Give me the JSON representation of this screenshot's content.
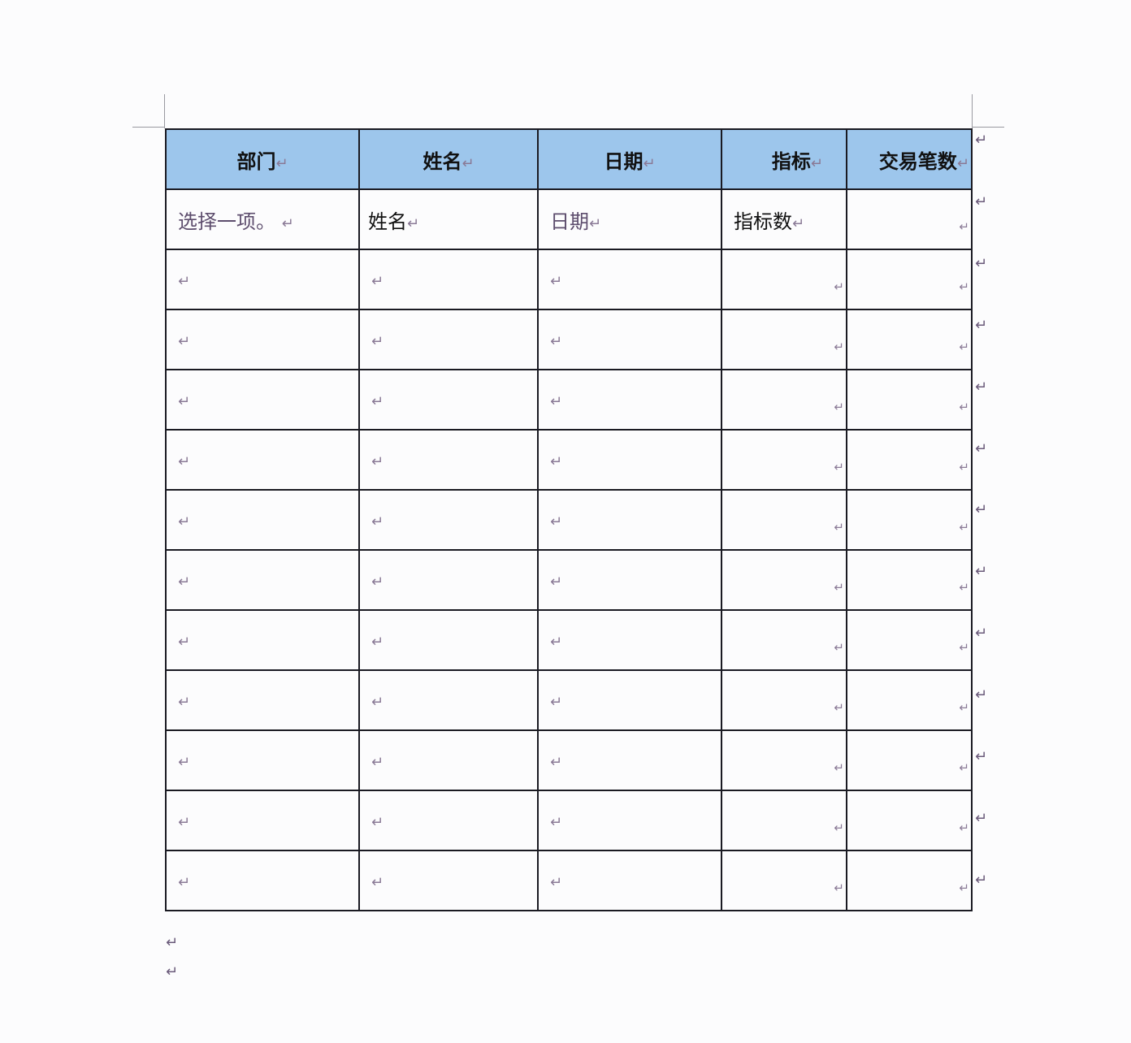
{
  "paragraph_mark": "↵",
  "header": [
    "部门",
    "姓名",
    "日期",
    "指标",
    "交易笔数"
  ],
  "first_row": {
    "department": "选择一项。",
    "name": "姓名",
    "date": "日期",
    "metric": "指标数",
    "transactions": ""
  },
  "empty_rows": 11,
  "colors": {
    "header_bg": "#9dc6ec",
    "border": "#1a1a22",
    "placeholder": "#5d4d6d"
  }
}
